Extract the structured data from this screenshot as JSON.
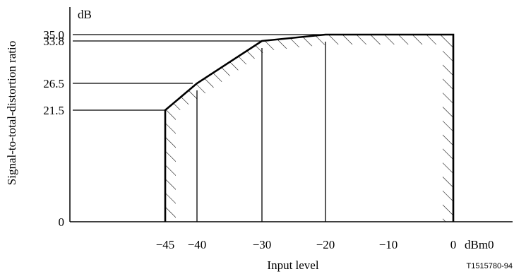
{
  "chart_data": {
    "type": "line",
    "xlabel": "Input level",
    "ylabel": "Signal-to-total-distortion ratio",
    "x_unit": "dBm0",
    "y_unit": "dB",
    "xlim": [
      -50,
      0
    ],
    "ylim": [
      0,
      35
    ],
    "x_ticks": [
      {
        "value": -45,
        "label": "−45"
      },
      {
        "value": -40,
        "label": "−40"
      },
      {
        "value": -30,
        "label": "−30"
      },
      {
        "value": -20,
        "label": "−20"
      },
      {
        "value": -10,
        "label": "−10"
      },
      {
        "value": 0,
        "label": "0"
      }
    ],
    "y_ticks": [
      {
        "value": 0,
        "label": "0"
      },
      {
        "value": 21.5,
        "label": "21.5"
      },
      {
        "value": 26.5,
        "label": "26.5"
      },
      {
        "value": 33.8,
        "label": "33.8"
      },
      {
        "value": 35.0,
        "label": "35.0"
      }
    ],
    "series": [
      {
        "x": [
          -45,
          -45,
          -40,
          -30,
          -20,
          0,
          0
        ],
        "y": [
          0,
          21.5,
          26.5,
          33.8,
          35.0,
          35.0,
          0
        ]
      }
    ],
    "vertical_lines": [
      -40,
      -30,
      -20
    ],
    "hatched_region": "acceptable region below the mask",
    "figure_id": "T1515780-94"
  }
}
